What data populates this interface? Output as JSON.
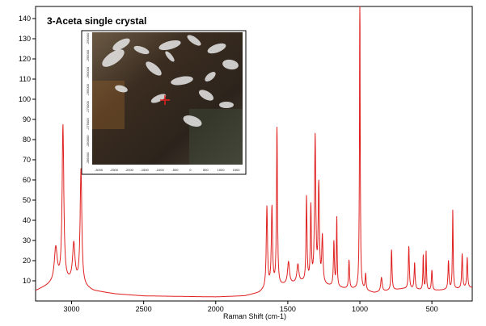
{
  "chart_data": {
    "type": "line",
    "title": "3-Aceta single crystal",
    "xlabel": "Raman Shift (cm-1)",
    "ylabel": "",
    "xlim": [
      3250,
      220
    ],
    "ylim": [
      0,
      146
    ],
    "x_reversed": true,
    "grid": false,
    "line_color": "#e02020",
    "x_ticks": [
      3000,
      2500,
      2000,
      1500,
      1000,
      500
    ],
    "x_tick_labels": [
      "3000",
      "2500",
      "2000",
      "1500",
      "1000",
      "500"
    ],
    "y_ticks": [
      10,
      20,
      30,
      40,
      50,
      60,
      70,
      80,
      90,
      100,
      110,
      120,
      130,
      140
    ],
    "y_tick_labels": [
      "10",
      "20",
      "30",
      "40",
      "50",
      "60",
      "70",
      "80",
      "90",
      "100",
      "110",
      "120",
      "130",
      "140"
    ],
    "baseline": [
      [
        3250,
        5
      ],
      [
        3150,
        8
      ],
      [
        3100,
        9
      ],
      [
        3000,
        9
      ],
      [
        2950,
        8
      ],
      [
        2850,
        5
      ],
      [
        2700,
        3.5
      ],
      [
        2500,
        2.5
      ],
      [
        2000,
        2
      ],
      [
        1800,
        2.5
      ],
      [
        1700,
        4
      ],
      [
        1650,
        6
      ],
      [
        1500,
        8
      ],
      [
        1400,
        9
      ],
      [
        1300,
        8
      ],
      [
        1200,
        7
      ],
      [
        1100,
        6
      ],
      [
        1000,
        5.5
      ],
      [
        900,
        4
      ],
      [
        800,
        5
      ],
      [
        700,
        6
      ],
      [
        600,
        5.5
      ],
      [
        500,
        5
      ],
      [
        400,
        5.5
      ],
      [
        300,
        6
      ],
      [
        220,
        6.5
      ]
    ],
    "peaks": [
      {
        "x": 3110,
        "height": 17,
        "width": 12
      },
      {
        "x": 3060,
        "height": 77,
        "width": 7
      },
      {
        "x": 2985,
        "height": 19,
        "width": 10
      },
      {
        "x": 2935,
        "height": 57,
        "width": 7
      },
      {
        "x": 1645,
        "height": 40,
        "width": 5
      },
      {
        "x": 1610,
        "height": 39,
        "width": 5
      },
      {
        "x": 1575,
        "height": 78,
        "width": 4
      },
      {
        "x": 1495,
        "height": 11,
        "width": 8
      },
      {
        "x": 1430,
        "height": 9,
        "width": 8
      },
      {
        "x": 1370,
        "height": 42,
        "width": 4
      },
      {
        "x": 1340,
        "height": 37,
        "width": 4
      },
      {
        "x": 1310,
        "height": 72,
        "width": 5
      },
      {
        "x": 1285,
        "height": 48,
        "width": 5
      },
      {
        "x": 1260,
        "height": 23,
        "width": 5
      },
      {
        "x": 1180,
        "height": 22,
        "width": 4
      },
      {
        "x": 1160,
        "height": 34,
        "width": 3
      },
      {
        "x": 1075,
        "height": 14,
        "width": 4
      },
      {
        "x": 1000,
        "height": 146,
        "width": 3
      },
      {
        "x": 960,
        "height": 8,
        "width": 4
      },
      {
        "x": 850,
        "height": 7,
        "width": 6
      },
      {
        "x": 780,
        "height": 20,
        "width": 4
      },
      {
        "x": 660,
        "height": 21,
        "width": 4
      },
      {
        "x": 620,
        "height": 13,
        "width": 4
      },
      {
        "x": 560,
        "height": 17,
        "width": 3
      },
      {
        "x": 540,
        "height": 19,
        "width": 3
      },
      {
        "x": 500,
        "height": 10,
        "width": 4
      },
      {
        "x": 385,
        "height": 14,
        "width": 4
      },
      {
        "x": 355,
        "height": 39,
        "width": 3
      },
      {
        "x": 290,
        "height": 17,
        "width": 4
      },
      {
        "x": 255,
        "height": 15,
        "width": 4
      }
    ],
    "inset": {
      "x_tick_labels": [
        "-3000",
        "-2500",
        "-2000",
        "-1500",
        "-1000",
        "-500",
        "0",
        "500",
        "1000",
        "1500"
      ],
      "y_tick_labels": [
        "-250000",
        "-255000",
        "-260000",
        "-265000",
        "-270000",
        "-275000",
        "-280000",
        "-285000"
      ],
      "marker_color": "#e02020"
    }
  }
}
